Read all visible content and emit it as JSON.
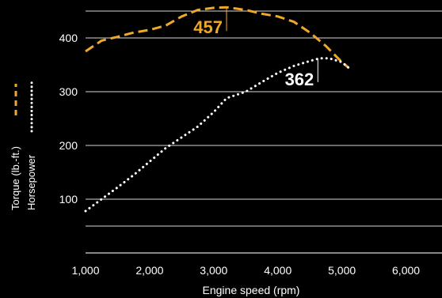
{
  "chart_data": {
    "type": "line",
    "xlabel": "Engine speed (rpm)",
    "xlim": [
      1000,
      6500
    ],
    "ylim": [
      0,
      500
    ],
    "x_ticks": [
      1000,
      2000,
      3000,
      4000,
      5000,
      6000
    ],
    "x_tick_labels": [
      "1,000",
      "2,000",
      "3,000",
      "4,000",
      "5,000",
      "6,000"
    ],
    "y_ticks": [
      100,
      200,
      300,
      400
    ],
    "y_tick_labels": [
      "100",
      "200",
      "300",
      "400"
    ],
    "grid": "horizontal",
    "legend": "left-vertical",
    "series": [
      {
        "name": "Torque (lb.-ft.)",
        "style": "dashed",
        "color": "#f0a82a",
        "x": [
          1000,
          1250,
          1500,
          1750,
          2000,
          2250,
          2500,
          2750,
          3000,
          3200,
          3500,
          3750,
          4000,
          4250,
          4500,
          4750,
          5000,
          5100
        ],
        "values": [
          375,
          395,
          402,
          410,
          415,
          423,
          440,
          452,
          456,
          457,
          452,
          445,
          440,
          430,
          410,
          385,
          355,
          345
        ],
        "peak": {
          "label": "457",
          "x": 3200,
          "y": 457
        }
      },
      {
        "name": "Horsepower",
        "style": "dotted",
        "color": "#ffffff",
        "x": [
          1000,
          1250,
          1500,
          1750,
          2000,
          2250,
          2500,
          2750,
          3000,
          3200,
          3500,
          3750,
          4000,
          4250,
          4500,
          4650,
          4800,
          5000,
          5100
        ],
        "values": [
          78,
          100,
          122,
          145,
          170,
          195,
          215,
          235,
          262,
          288,
          300,
          318,
          335,
          348,
          357,
          362,
          362,
          355,
          345
        ],
        "peak": {
          "label": "362",
          "x": 4625,
          "y": 362
        }
      }
    ]
  }
}
